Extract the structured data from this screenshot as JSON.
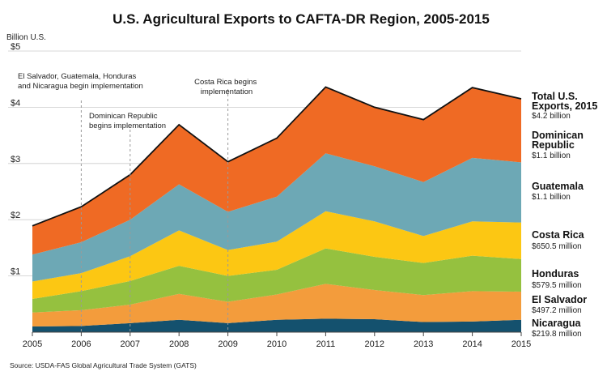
{
  "chart_data": {
    "type": "area",
    "stacked": true,
    "title": "U.S. Agricultural Exports to CAFTA-DR Region, 2005-2015",
    "ylabel": "Billion U.S.",
    "ylim": [
      0,
      5
    ],
    "x": [
      "2005",
      "2006",
      "2007",
      "2008",
      "2009",
      "2010",
      "2011",
      "2012",
      "2013",
      "2014",
      "2015"
    ],
    "ytick_labels": [
      {
        "value": 1,
        "label": "$1"
      },
      {
        "value": 2,
        "label": "$2"
      },
      {
        "value": 3,
        "label": "$3"
      },
      {
        "value": 4,
        "label": "$4"
      },
      {
        "value": 5,
        "label": "$5"
      }
    ],
    "series": [
      {
        "name": "Nicaragua",
        "legend_value": "$219.8 million",
        "color": "#14516e",
        "values": [
          0.1,
          0.11,
          0.16,
          0.22,
          0.16,
          0.22,
          0.24,
          0.23,
          0.18,
          0.19,
          0.22
        ]
      },
      {
        "name": "El Salvador",
        "legend_value": "$497.2 million",
        "color": "#f39c3c",
        "values": [
          0.25,
          0.28,
          0.33,
          0.46,
          0.38,
          0.45,
          0.62,
          0.52,
          0.48,
          0.54,
          0.5
        ]
      },
      {
        "name": "Honduras",
        "legend_value": "$579.5 million",
        "color": "#95c13f",
        "values": [
          0.24,
          0.34,
          0.42,
          0.5,
          0.46,
          0.44,
          0.63,
          0.59,
          0.57,
          0.63,
          0.58
        ]
      },
      {
        "name": "Costa Rica",
        "legend_value": "$650.5 million",
        "color": "#fcc713",
        "values": [
          0.31,
          0.32,
          0.44,
          0.63,
          0.46,
          0.5,
          0.66,
          0.63,
          0.48,
          0.61,
          0.65
        ]
      },
      {
        "name": "Guatemala",
        "legend_value": "$1.1 billion",
        "color": "#6da8b5",
        "values": [
          0.48,
          0.55,
          0.65,
          0.82,
          0.68,
          0.8,
          1.03,
          0.98,
          0.96,
          1.13,
          1.07
        ]
      },
      {
        "name": "Dominican Republic",
        "legend_value": "$1.1 billion",
        "color": "#ef6a24",
        "values": [
          0.51,
          0.63,
          0.8,
          1.06,
          0.89,
          1.04,
          1.18,
          1.05,
          1.11,
          1.25,
          1.13
        ]
      }
    ],
    "total": {
      "name": "Total U.S. Exports, 2015",
      "legend_value": "$4.2 billion",
      "values": [
        1.89,
        2.23,
        2.8,
        3.69,
        3.03,
        3.45,
        4.36,
        4.0,
        3.78,
        4.35,
        4.15
      ]
    },
    "legend_names": {
      "total": [
        "Total U.S.",
        "Exports, 2015"
      ],
      "dominican": [
        "Dominican",
        "Republic"
      ],
      "guatemala": [
        "Guatemala"
      ],
      "costa_rica": [
        "Costa Rica"
      ],
      "honduras": [
        "Honduras"
      ],
      "el_salvador": [
        "El Salvador"
      ],
      "nicaragua": [
        "Nicaragua"
      ]
    },
    "annotations": [
      {
        "x": 2006,
        "lines": [
          "El Salvador, Guatemala, Honduras",
          "and Nicaragua begin implementation"
        ]
      },
      {
        "x": 2007,
        "lines": [
          "Dominican Republic",
          "begins implementation"
        ]
      },
      {
        "x": 2009,
        "lines": [
          "Costa Rica begins",
          "implementation"
        ]
      }
    ],
    "source": "Source:  USDA-FAS Global Agricultural Trade System (GATS)"
  }
}
